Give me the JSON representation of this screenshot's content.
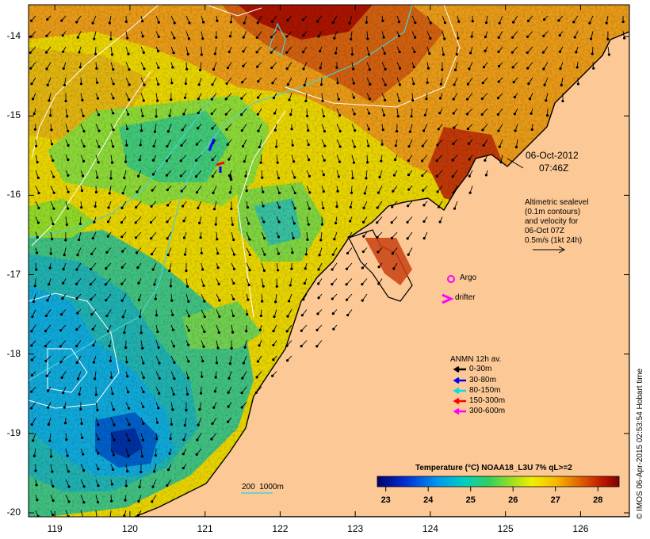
{
  "map": {
    "lat_labels": [
      "-14",
      "-15",
      "-16",
      "-17",
      "-18",
      "-19",
      "-20"
    ],
    "lon_labels": [
      "119",
      "120",
      "121",
      "122",
      "123",
      "124",
      "125",
      "126"
    ],
    "extent": {
      "lon_min": 118.65,
      "lon_max": 126.65,
      "lat_min": -20.05,
      "lat_max": -13.6
    }
  },
  "timestamp": {
    "date": "06-Oct-2012",
    "time": "07:46Z"
  },
  "altimetry_note": [
    "Altimetric sealevel",
    "(0.1m contours)",
    "and velocity for",
    "06-Oct 07Z",
    "0.5m/s (1kt 24h)"
  ],
  "markers": {
    "argo_label": "Argo",
    "drifter_label": "drifter"
  },
  "anmn_legend": {
    "title": "ANMN 12h av.",
    "items": [
      {
        "label": "0-30m",
        "color": "#000000"
      },
      {
        "label": "30-80m",
        "color": "#0000ff"
      },
      {
        "label": "80-150m",
        "color": "#00e0e0"
      },
      {
        "label": "150-300m",
        "color": "#ff0000"
      },
      {
        "label": "300-600m",
        "color": "#ff00ff"
      }
    ]
  },
  "depth_contour_label": "200  1000m",
  "colorbar": {
    "title": "Temperature (°C) NOAA18_L3U 7% qL>=2",
    "ticks": [
      "23",
      "24",
      "25",
      "26",
      "27",
      "28"
    ],
    "min": 22.8,
    "max": 28.5
  },
  "credit": "© IMOS 06-Apr-2015 02:53:54 Hobart time",
  "colors": {
    "land": "#fbc896",
    "coast": "#000000",
    "bathy": "#4ad2d2",
    "sealevel": "#ffffff"
  }
}
